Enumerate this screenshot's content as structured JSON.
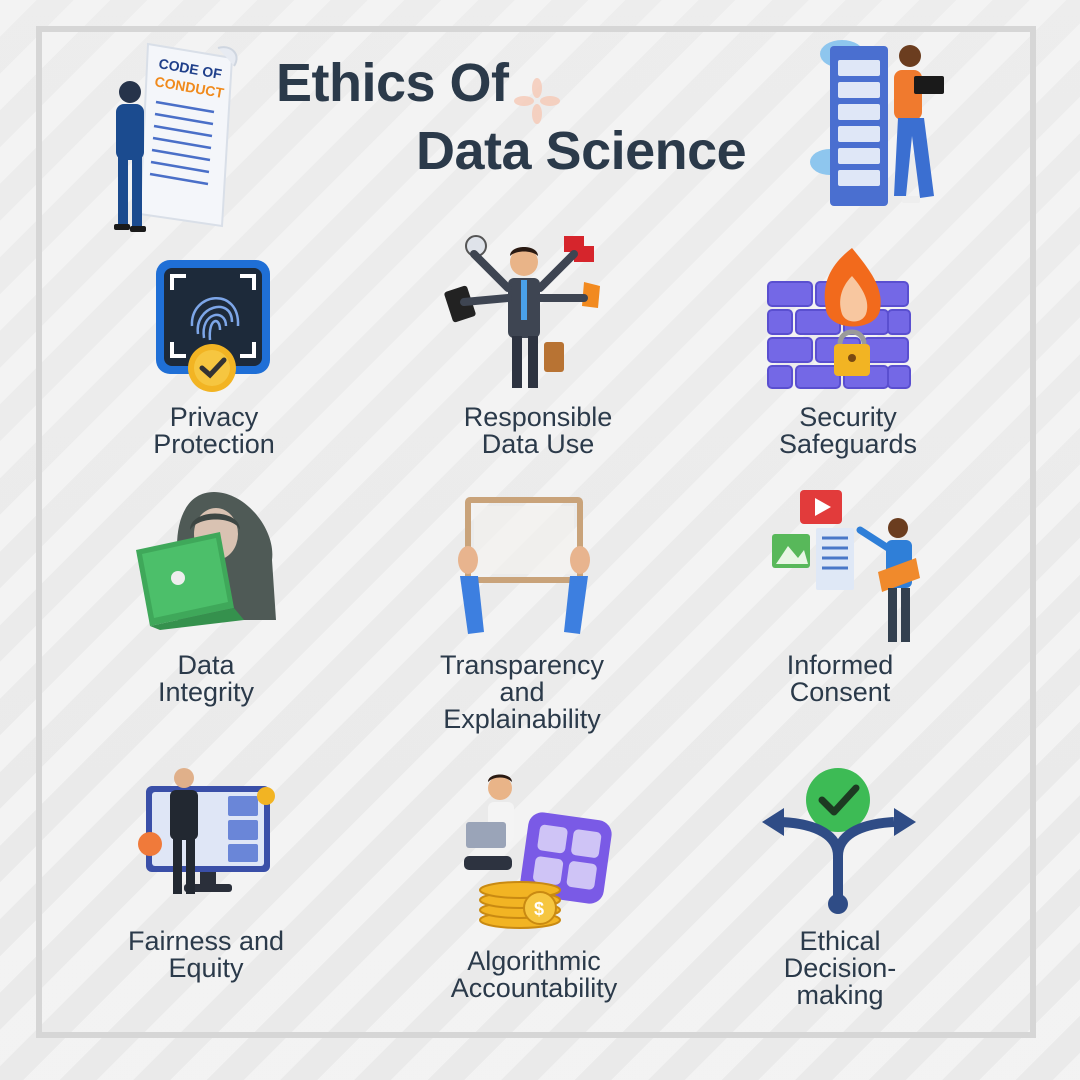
{
  "title": {
    "line1": "Ethics Of",
    "line2": "Data Science"
  },
  "illustrations": {
    "left_sign_text": "CODE OF\nCONDUCT"
  },
  "items": [
    {
      "label": "Privacy\nProtection",
      "icon": "fingerprint-scan-icon"
    },
    {
      "label": "Responsible\nData Use",
      "icon": "multitasking-businessman-icon"
    },
    {
      "label": "Security\nSafeguards",
      "icon": "firewall-lock-icon"
    },
    {
      "label": "Data\nIntegrity",
      "icon": "hooded-hacker-icon"
    },
    {
      "label": "Transparency\nand\nExplainability",
      "icon": "empty-frame-icon"
    },
    {
      "label": "Informed\nConsent",
      "icon": "media-content-icon"
    },
    {
      "label": "Fairness and\nEquity",
      "icon": "video-conference-icon"
    },
    {
      "label": "Algorithmic\nAccountability",
      "icon": "calculator-coins-icon"
    },
    {
      "label": "Ethical\nDecision-\nmaking",
      "icon": "decision-arrows-icon"
    }
  ],
  "colors": {
    "text": "#2b3a4a",
    "frame": "#d6d6d6",
    "accent_blue": "#2f6fd6",
    "accent_green": "#49b54a"
  }
}
